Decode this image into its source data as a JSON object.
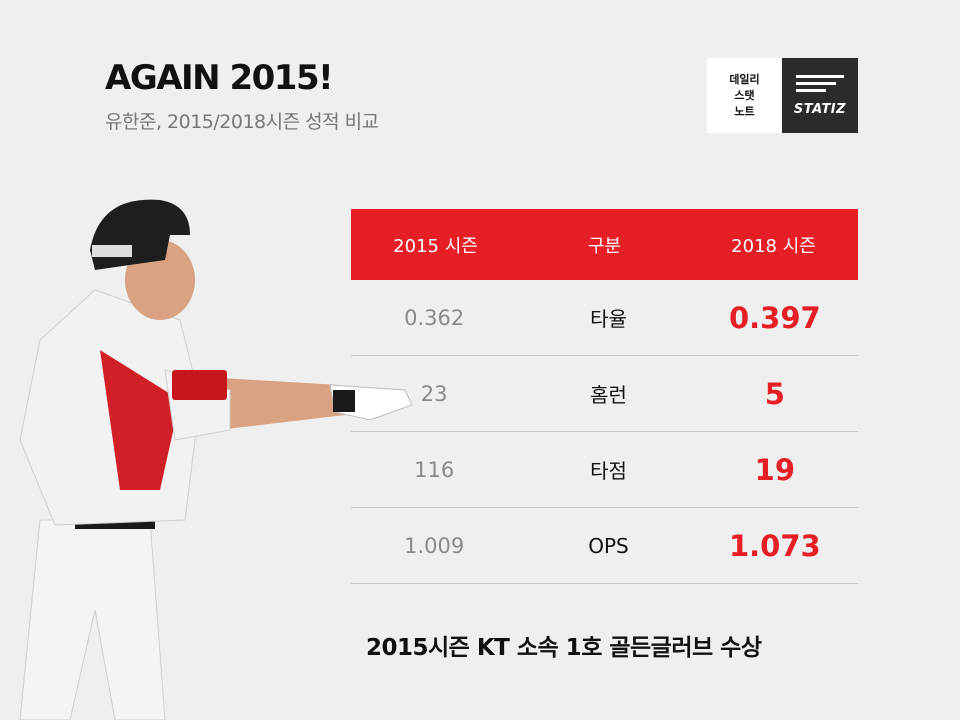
{
  "header": {
    "title": "AGAIN 2015!",
    "subtitle": "유한준, 2015/2018시즌 성적 비교"
  },
  "logo": {
    "left_lines": [
      "데일리",
      "스탯",
      "노트"
    ],
    "brand": "STATIZ"
  },
  "table": {
    "headers": [
      "2015 시즌",
      "구분",
      "2018 시즌"
    ],
    "rows": [
      {
        "y2015": "0.362",
        "stat": "타율",
        "y2018": "0.397"
      },
      {
        "y2015": "23",
        "stat": "홈런",
        "y2018": "5"
      },
      {
        "y2015": "116",
        "stat": "타점",
        "y2018": "19"
      },
      {
        "y2015": "1.009",
        "stat": "OPS",
        "y2018": "1.073"
      }
    ]
  },
  "footer": "2015시즌  KT 소속 1호 골든글러브 수상",
  "colors": {
    "accent": "#e61e25",
    "background": "#efefef"
  }
}
